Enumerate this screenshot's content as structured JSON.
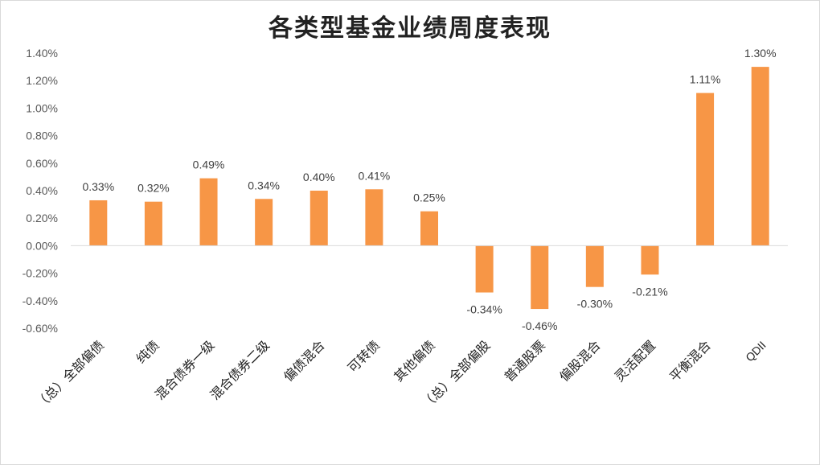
{
  "title": "各类型基金业绩周度表现",
  "chart_data": {
    "type": "bar",
    "title": "各类型基金业绩周度表现",
    "xlabel": "",
    "ylabel": "",
    "categories": [
      "（总）全部偏债",
      "纯债",
      "混合债券一级",
      "混合债券二级",
      "偏债混合",
      "可转债",
      "其他偏债",
      "（总）全部偏股",
      "普通股票",
      "偏股混合",
      "灵活配置",
      "平衡混合",
      "QDII"
    ],
    "values": [
      0.33,
      0.32,
      0.49,
      0.34,
      0.4,
      0.41,
      0.25,
      -0.34,
      -0.46,
      -0.3,
      -0.21,
      1.11,
      1.3
    ],
    "data_labels": [
      "0.33%",
      "0.32%",
      "0.49%",
      "0.34%",
      "0.40%",
      "0.41%",
      "0.25%",
      "-0.34%",
      "-0.46%",
      "-0.30%",
      "-0.21%",
      "1.11%",
      "1.30%"
    ],
    "ylim": [
      -0.6,
      1.4
    ],
    "yticks": [
      1.4,
      1.2,
      1.0,
      0.8,
      0.6,
      0.4,
      0.2,
      0.0,
      -0.2,
      -0.4,
      -0.6
    ],
    "ytick_labels": [
      "1.40%",
      "1.20%",
      "1.00%",
      "0.80%",
      "0.60%",
      "0.40%",
      "0.20%",
      "0.00%",
      "-0.20%",
      "-0.40%",
      "-0.60%"
    ],
    "bar_color": "#f79646",
    "grid": false,
    "legend": "none"
  }
}
